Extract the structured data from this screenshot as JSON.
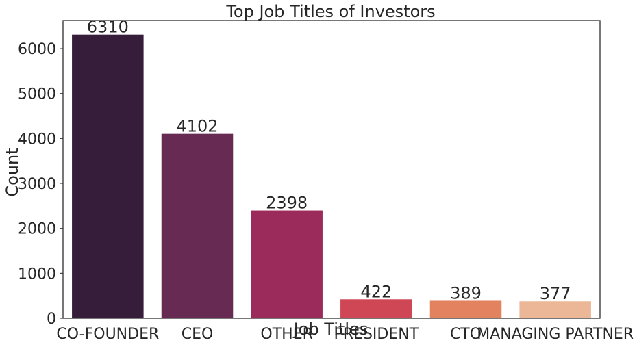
{
  "chart_data": {
    "type": "bar",
    "title": "Top Job Titles of Investors",
    "xlabel": "Job Titles",
    "ylabel": "Count",
    "categories": [
      "CO-FOUNDER",
      "CEO",
      "OTHER",
      "PRESIDENT",
      "CTO",
      "MANAGING PARTNER"
    ],
    "values": [
      6310,
      4102,
      2398,
      422,
      389,
      377
    ],
    "data_labels": [
      "6310",
      "4102",
      "2398",
      "422",
      "389",
      "377"
    ],
    "ylim": [
      0,
      6625
    ],
    "yticks": [
      0,
      1000,
      2000,
      3000,
      4000,
      5000,
      6000
    ],
    "ytick_labels": [
      "0",
      "1000",
      "2000",
      "3000",
      "4000",
      "5000",
      "6000"
    ],
    "colors": [
      "#361d3a",
      "#672a53",
      "#9b2b5b",
      "#cf4755",
      "#e2825f",
      "#ebb797"
    ],
    "grid": false,
    "legend": "none"
  }
}
